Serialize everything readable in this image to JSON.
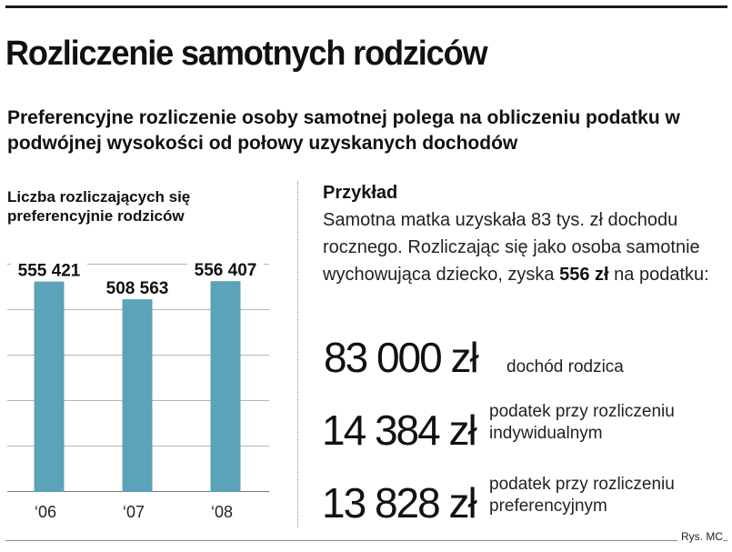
{
  "title": "Rozliczenie samotnych rodziców",
  "subtitle": "Preferencyjne rozliczenie osoby samotnej polega na obliczeniu podatku w podwójnej wysokości od połowy uzyskanych dochodów",
  "chart_data": {
    "type": "bar",
    "title": "Liczba rozliczających się preferencyjnie rodziców",
    "categories": [
      "‘06",
      "‘07",
      "‘08"
    ],
    "values": [
      555421,
      508563,
      556407
    ],
    "value_labels": [
      "555 421",
      "508 563",
      "556 407"
    ],
    "bar_color": "#5ba3b9",
    "ylim": [
      0,
      600000
    ],
    "grid": true
  },
  "example": {
    "heading": "Przykład",
    "text_before": "Samotna matka uzyskała 83 tys. zł dochodu rocznego. Rozliczając się jako osoba samotnie wychowująca dziecko, zyska ",
    "text_bold": "556 zł",
    "text_after": " na podatku:",
    "items": [
      {
        "amount": "83 000 zł",
        "label": "dochód rodzica"
      },
      {
        "amount": "14 384 zł",
        "label": "podatek przy rozliczeniu indywidualnym"
      },
      {
        "amount": "13 828 zł",
        "label": "podatek przy rozliczeniu preferencyjnym"
      }
    ]
  },
  "credit": "Rys. MC"
}
